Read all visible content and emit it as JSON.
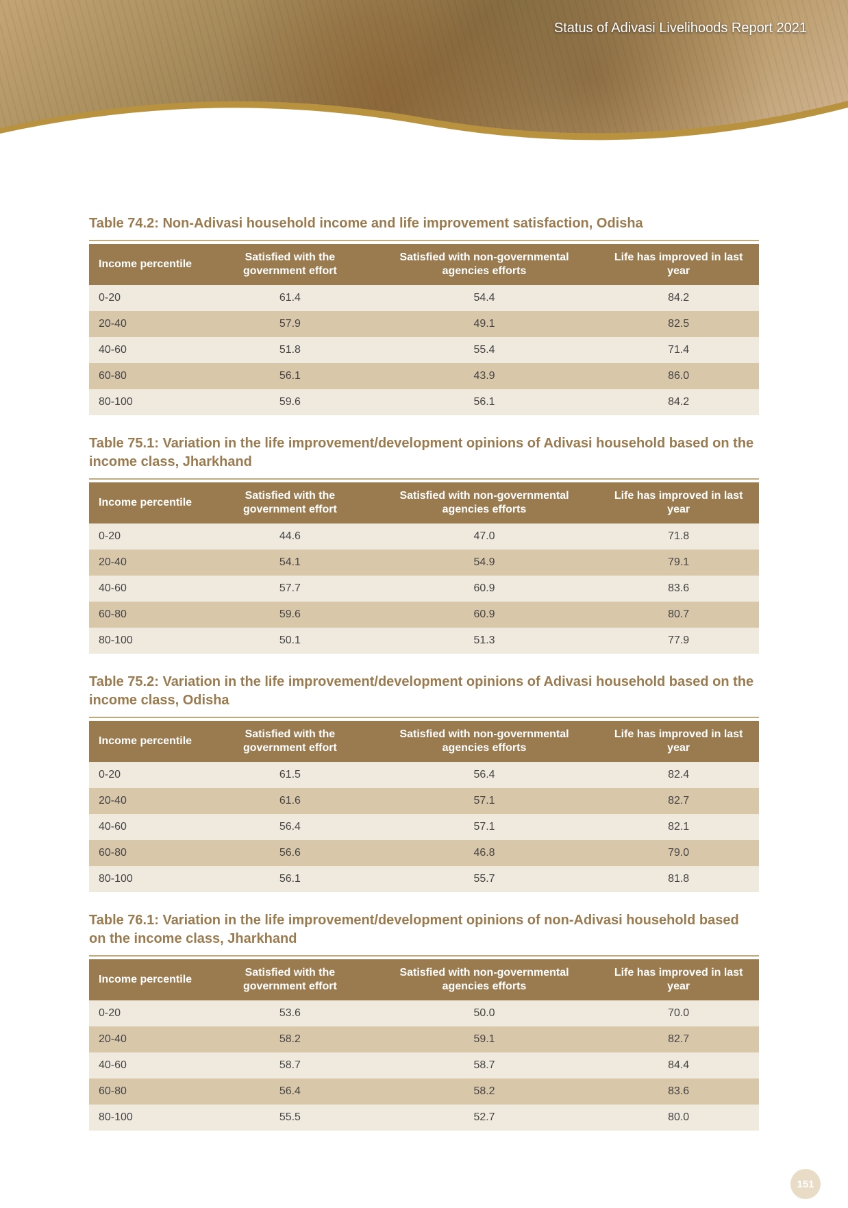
{
  "header": {
    "report_title": "Status of Adivasi Livelihoods Report 2021"
  },
  "page_number": "151",
  "column_headers": {
    "c1": "Income percentile",
    "c2": "Satisfied with the government effort",
    "c3": "Satisfied with non-governmental agencies efforts",
    "c4_a": "Life has improved in last year",
    "c4_b": "Life has improved in last year"
  },
  "tables": [
    {
      "title": "Table 74.2: Non-Adivasi household income and life improvement satisfaction, Odisha",
      "rows": [
        {
          "c1": "0-20",
          "c2": "61.4",
          "c3": "54.4",
          "c4": "84.2"
        },
        {
          "c1": "20-40",
          "c2": "57.9",
          "c3": "49.1",
          "c4": "82.5"
        },
        {
          "c1": "40-60",
          "c2": "51.8",
          "c3": "55.4",
          "c4": "71.4"
        },
        {
          "c1": "60-80",
          "c2": "56.1",
          "c3": "43.9",
          "c4": "86.0"
        },
        {
          "c1": "80-100",
          "c2": "59.6",
          "c3": "56.1",
          "c4": "84.2"
        }
      ]
    },
    {
      "title": "Table 75.1: Variation in the life improvement/development opinions of Adivasi household based on the income class, Jharkhand",
      "rows": [
        {
          "c1": "0-20",
          "c2": "44.6",
          "c3": "47.0",
          "c4": "71.8"
        },
        {
          "c1": "20-40",
          "c2": "54.1",
          "c3": "54.9",
          "c4": "79.1"
        },
        {
          "c1": "40-60",
          "c2": "57.7",
          "c3": "60.9",
          "c4": "83.6"
        },
        {
          "c1": "60-80",
          "c2": "59.6",
          "c3": "60.9",
          "c4": "80.7"
        },
        {
          "c1": "80-100",
          "c2": "50.1",
          "c3": "51.3",
          "c4": "77.9"
        }
      ]
    },
    {
      "title": "Table 75.2: Variation in the life improvement/development opinions of Adivasi household based on the income class, Odisha",
      "rows": [
        {
          "c1": "0-20",
          "c2": "61.5",
          "c3": "56.4",
          "c4": "82.4"
        },
        {
          "c1": "20-40",
          "c2": "61.6",
          "c3": "57.1",
          "c4": "82.7"
        },
        {
          "c1": "40-60",
          "c2": "56.4",
          "c3": "57.1",
          "c4": "82.1"
        },
        {
          "c1": "60-80",
          "c2": "56.6",
          "c3": "46.8",
          "c4": "79.0"
        },
        {
          "c1": "80-100",
          "c2": "56.1",
          "c3": "55.7",
          "c4": "81.8"
        }
      ]
    },
    {
      "title": "Table 76.1:  Variation in the life improvement/development opinions of non-Adivasi household based on the income class, Jharkhand",
      "rows": [
        {
          "c1": "0-20",
          "c2": "53.6",
          "c3": "50.0",
          "c4": "70.0"
        },
        {
          "c1": "20-40",
          "c2": "58.2",
          "c3": "59.1",
          "c4": "82.7"
        },
        {
          "c1": "40-60",
          "c2": "58.7",
          "c3": "58.7",
          "c4": "84.4"
        },
        {
          "c1": "60-80",
          "c2": "56.4",
          "c3": "58.2",
          "c4": "83.6"
        },
        {
          "c1": "80-100",
          "c2": "55.5",
          "c3": "52.7",
          "c4": "80.0"
        }
      ]
    }
  ],
  "colors": {
    "title_color": "#9a7b4f",
    "header_bg": "#9a7b4f",
    "header_fg": "#ffffff",
    "row_odd_bg": "#f0eade",
    "row_even_bg": "#d9c7aa",
    "rule_color": "#c0a97f",
    "curve_band": "#b8923f",
    "page_bg": "#ffffff",
    "pagenum_bg": "#e8dcc6"
  }
}
